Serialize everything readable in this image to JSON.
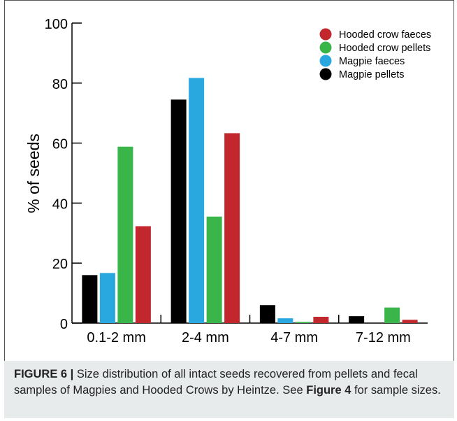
{
  "chart_data": {
    "type": "bar",
    "categories": [
      "0.1-2 mm",
      "2-4 mm",
      "4-7 mm",
      "7-12 mm"
    ],
    "series": [
      {
        "name": "Magpie pellets",
        "color": "#000000",
        "values": [
          16,
          74.5,
          6,
          2.3
        ]
      },
      {
        "name": "Magpie faeces",
        "color": "#29a8e0",
        "values": [
          16.7,
          81.7,
          1.6,
          0
        ]
      },
      {
        "name": "Hooded crow pellets",
        "color": "#3ab54a",
        "values": [
          58.8,
          35.5,
          0.4,
          5.2
        ]
      },
      {
        "name": "Hooded crow faeces",
        "color": "#c1272d",
        "values": [
          32.3,
          63.3,
          2.1,
          1.1
        ]
      }
    ],
    "legend_order": [
      "Hooded crow faeces",
      "Hooded crow pellets",
      "Magpie faeces",
      "Magpie pellets"
    ],
    "ylabel": "% of seeds",
    "xlabel": "",
    "ylim": [
      0,
      100
    ],
    "yticks": [
      0,
      20,
      40,
      60,
      80,
      100
    ],
    "legend_position": "top-right",
    "grid": false
  },
  "caption": {
    "label": "FIGURE 6 |",
    "text_1": " Size distribution of all intact seeds recovered from pellets and fecal samples of Magpies and Hooded Crows by Heintze. See ",
    "ref": "Figure 4",
    "text_2": " for sample sizes."
  }
}
